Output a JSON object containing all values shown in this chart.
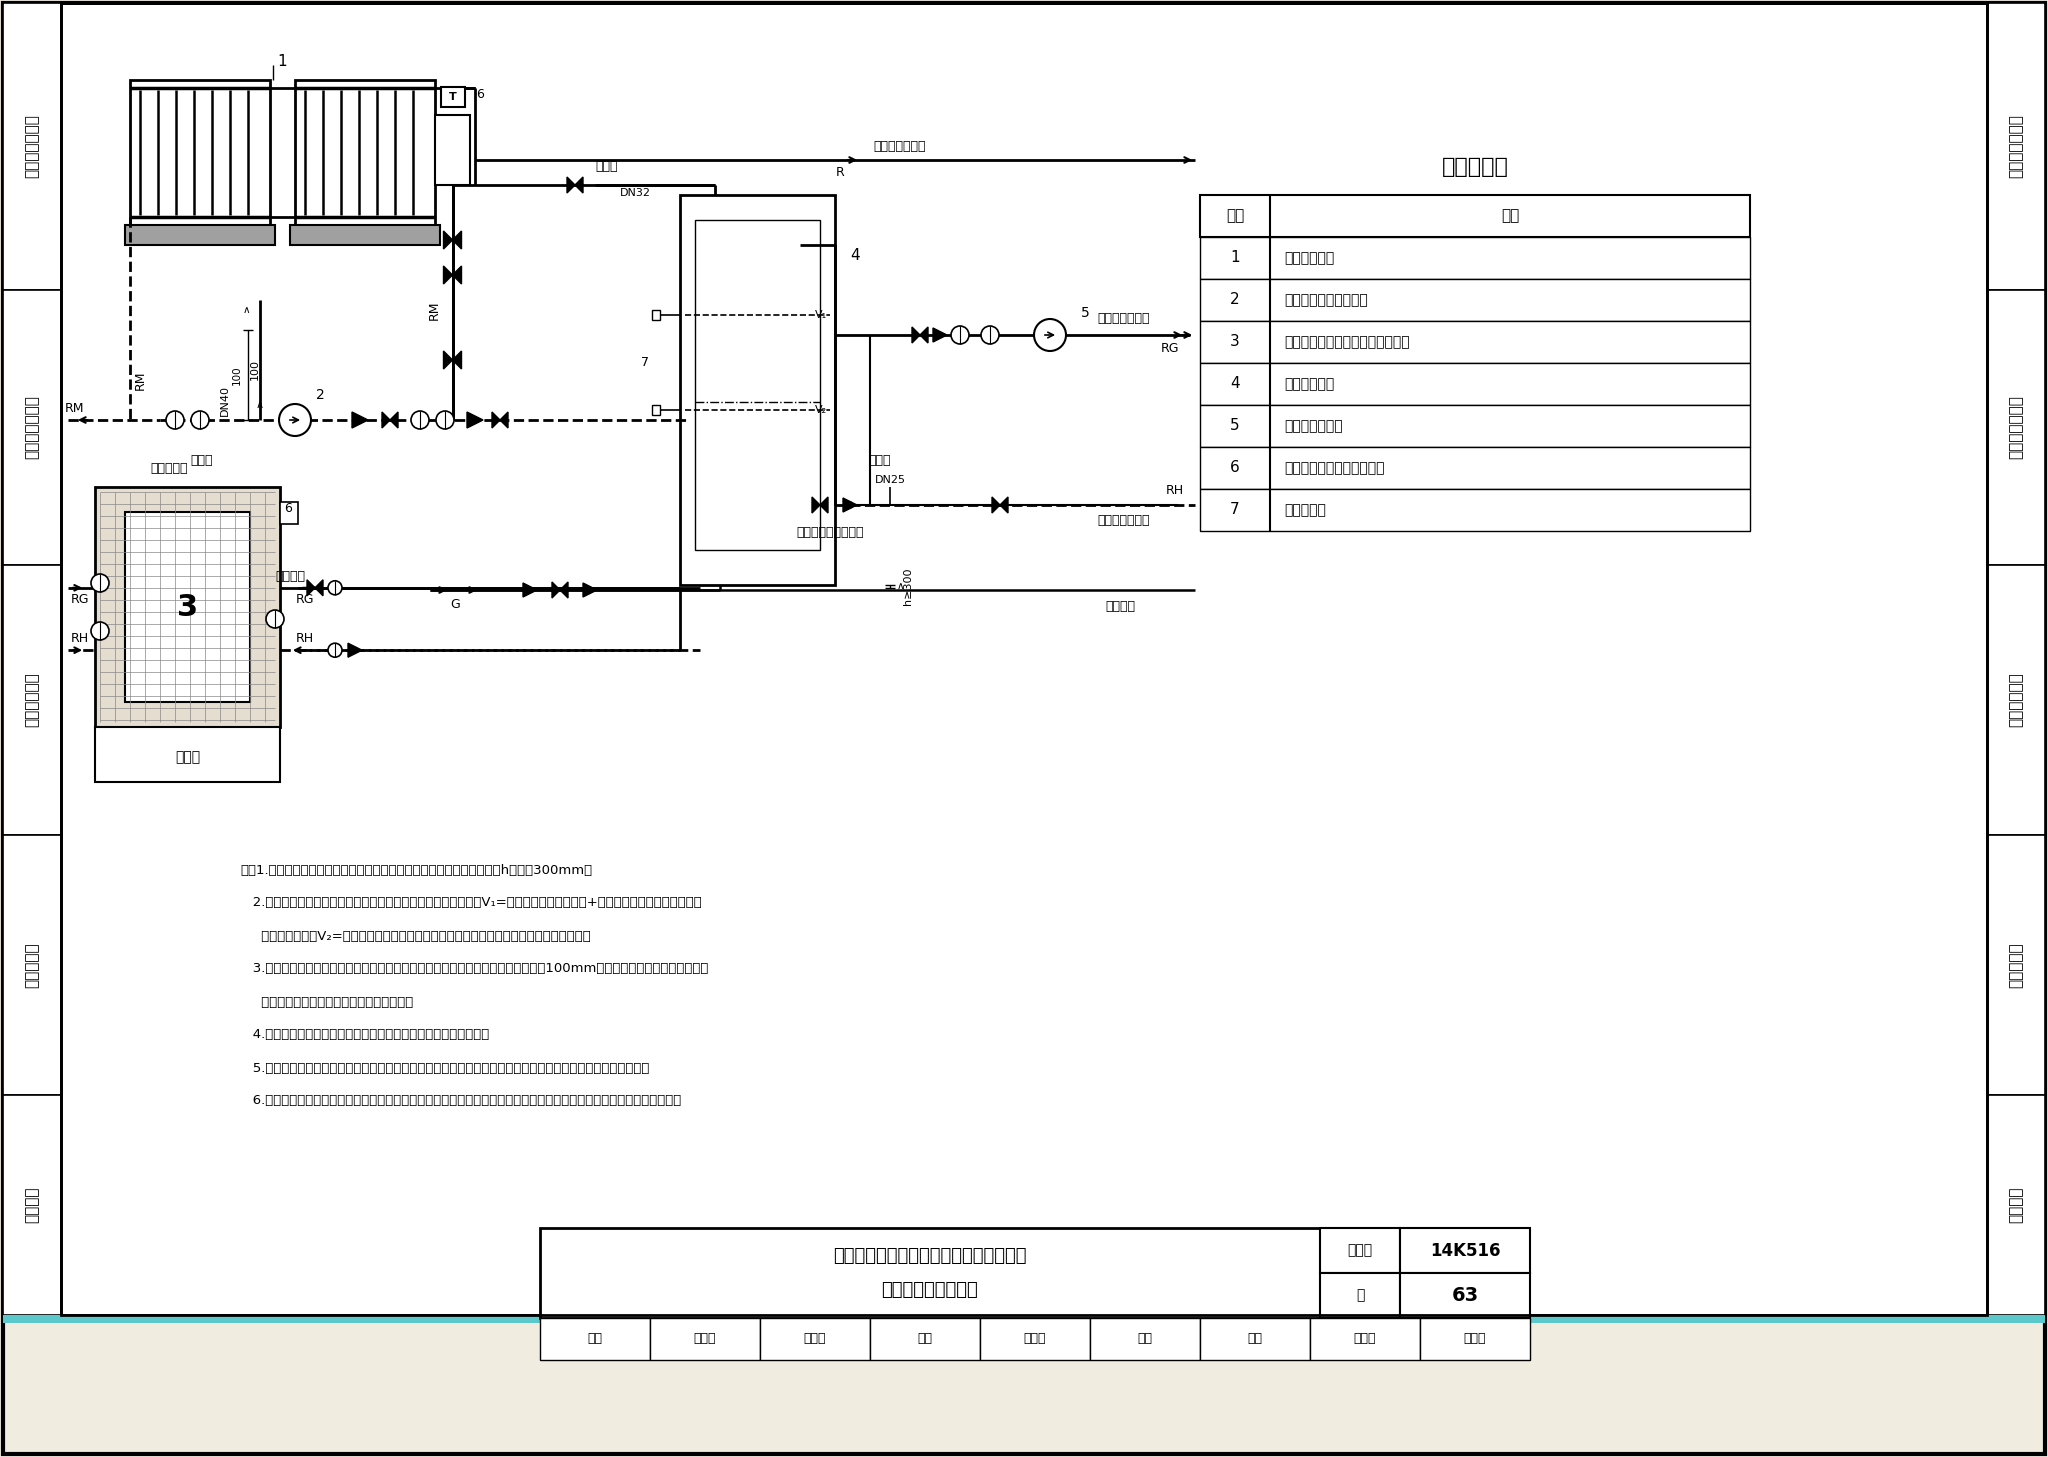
{
  "background_color": "#f0ece0",
  "white": "#ffffff",
  "black": "#000000",
  "cyan_color": "#5bc8cc",
  "gray_light": "#d8d0c0",
  "gray_medium": "#b8b0a0",
  "side_labels_left": [
    "燃气壁挂炉系统",
    "空气源热泵系统",
    "地源热泵系统",
    "燃煤炉系统",
    "工程示例"
  ],
  "side_labels_right": [
    "燃气壁挂炉系统",
    "空气源热泵系统",
    "地源热泵系统",
    "燃煤炉系统",
    "工程示例"
  ],
  "equipment_table_title": "主要设备表",
  "equipment_headers": [
    "编号",
    "名称"
  ],
  "equipment_items": [
    [
      "1",
      "太阳能集热器"
    ],
    [
      "2",
      "太阳能集热系统循环泵"
    ],
    [
      "3",
      "燃煤（含生物质固体成型燃料）炉"
    ],
    [
      "4",
      "开式储热水箱"
    ],
    [
      "5",
      "供暖系统循环泵"
    ],
    [
      "6",
      "炉体防爆装置（产品配套）"
    ],
    [
      "7",
      "液位传感器"
    ]
  ],
  "notes": [
    "注：1.储热水箱中心安装高度必须高于锅炉中心（锅筒中心）安装高度，h不小于300mm。",
    "   2.储热水箱内设有高、中、低三种液位，高、中液位间的水容量V₁=太阳能集热系统水容量+整个系统的膨胀水量；中、低",
    "     液位间的水容量V₂=系统每次的补水量，应根据系统总水容量和失水速率进行计算后确定。",
    "   3.锅炉泄压管上严禁安装阀门，管端应保持排气通畅并高于储热水箱高液位不小于100mm，泄压管需保温。溢流管应接至",
    "     安全的排水处，避免溢水时发生人员烫伤。",
    "   4.为使系统简化，辅助热源的启停及供热量的调节采用手动方式。",
    "   5.该种炉具无法精确控制水温，如末端采用地面辐射供暖系统，应采取混水等措施将水温控制在合理的范围内。",
    "   6.太阳能集热器应设置于系统最高处，其与储热水箱中液位面的高差应能满足集热器内水重力回流所需克服的管路阻力。"
  ],
  "title_line1": "与太阳能结合的燃煤（含生物质固体成型",
  "title_line2": "燃料）炉系统原理图",
  "figure_number": "14K516",
  "page_label": "页",
  "page_number": "63",
  "fig_set_label": "图集号",
  "sig_items": [
    "审核",
    "刘建华",
    "讨论稿",
    "校对",
    "张菁华",
    "破析",
    "设计",
    "牛晓元",
    "牛晓元",
    "页",
    "63"
  ]
}
